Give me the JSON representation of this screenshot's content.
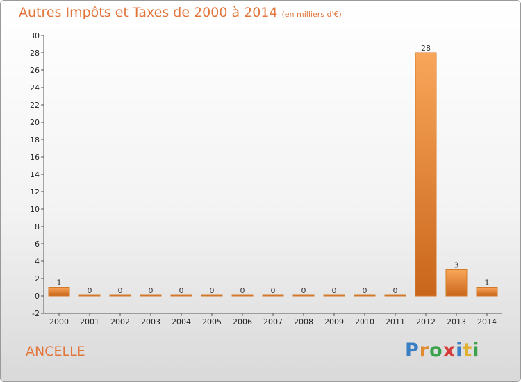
{
  "title": "Autres Impôts et Taxes de 2000 à 2014",
  "unit": "(en milliers d'€)",
  "commune": "ANCELLE",
  "logo": {
    "text": "Proxiti",
    "letters": [
      {
        "ch": "P",
        "color": "#3a7fc4"
      },
      {
        "ch": "r",
        "color": "#e08b2f"
      },
      {
        "ch": "o",
        "color": "#3aa24a"
      },
      {
        "ch": "x",
        "color": "#d63a3a"
      },
      {
        "ch": "i",
        "color": "#3a7fc4"
      },
      {
        "ch": "t",
        "color": "#e0b12f"
      },
      {
        "ch": "i",
        "color": "#3aa24a"
      }
    ]
  },
  "chart_data": {
    "type": "bar",
    "categories": [
      "2000",
      "2001",
      "2002",
      "2003",
      "2004",
      "2005",
      "2006",
      "2007",
      "2008",
      "2009",
      "2010",
      "2011",
      "2012",
      "2013",
      "2014"
    ],
    "values": [
      1,
      0,
      0,
      0,
      0,
      0,
      0,
      0,
      0,
      0,
      0,
      0,
      28,
      3,
      1
    ],
    "ylim": [
      -2,
      30
    ],
    "yticks": [
      -2,
      0,
      2,
      4,
      6,
      8,
      10,
      12,
      14,
      16,
      18,
      20,
      22,
      24,
      26,
      28,
      30
    ],
    "grid": false,
    "bar_color": "#e8862e"
  }
}
